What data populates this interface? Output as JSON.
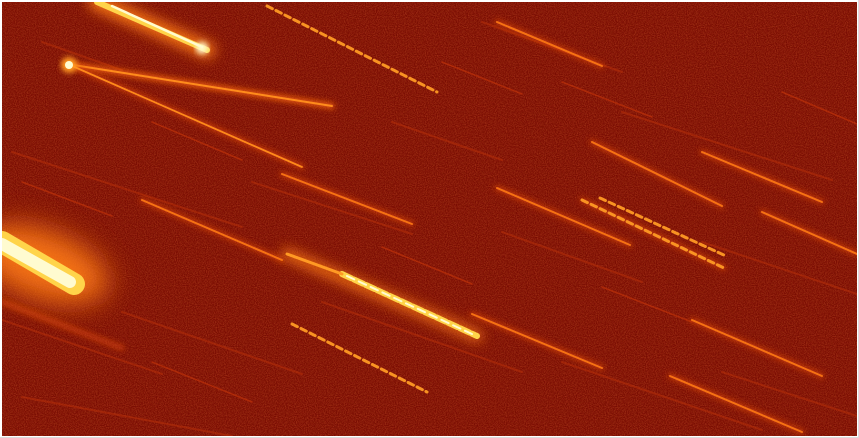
{
  "image": {
    "subject": "star-trails-exposure",
    "palette": {
      "background": "#7a0c02",
      "noise_dark": "#4a0500",
      "noise_light": "#b02a08",
      "trail_dim": "#d23a0a",
      "trail_mid": "#ff7a14",
      "trail_bright": "#ffd44a",
      "core": "#fffbd0"
    }
  }
}
